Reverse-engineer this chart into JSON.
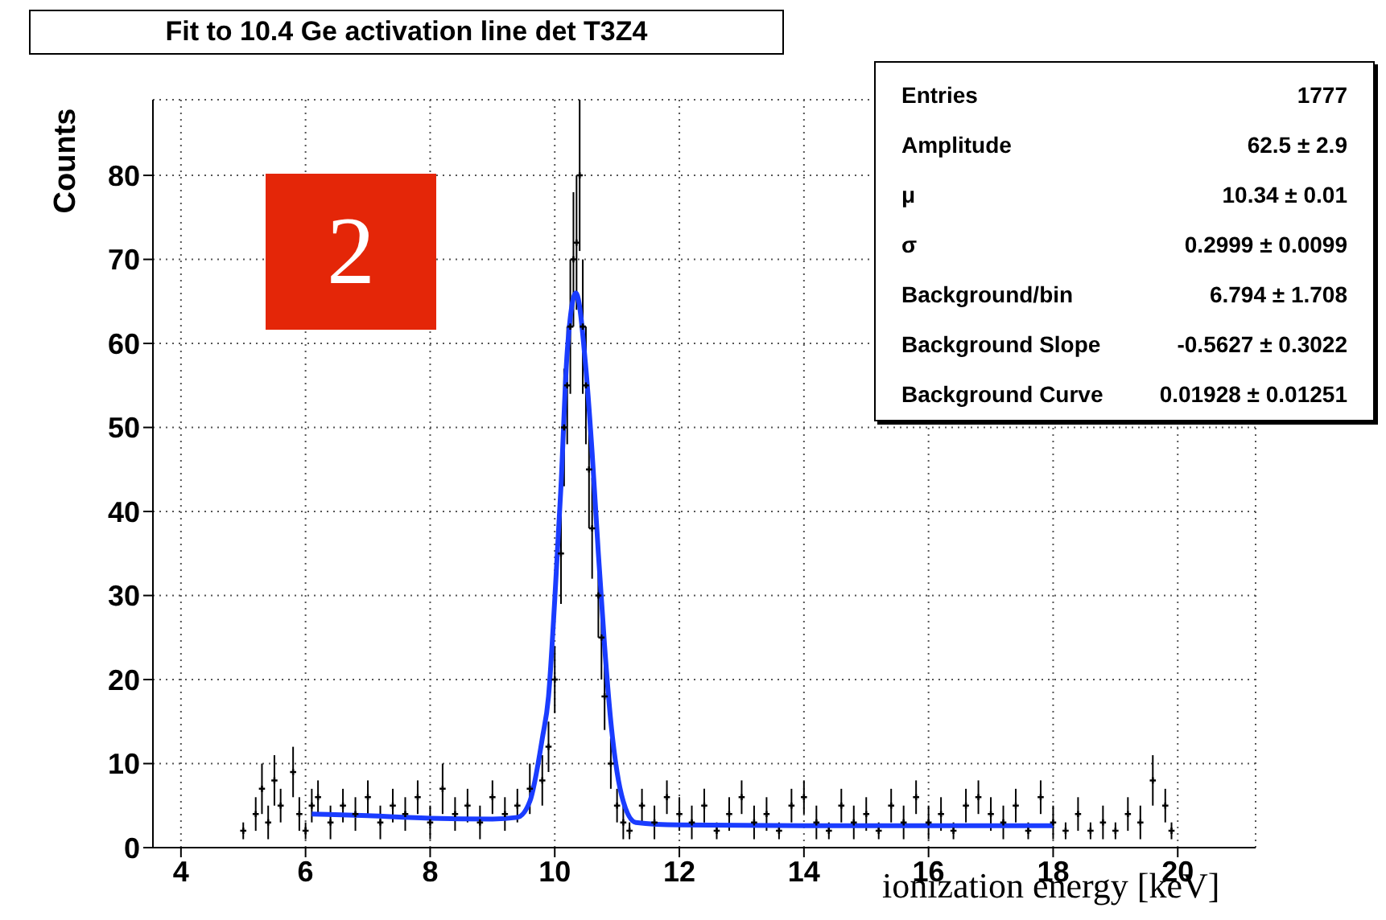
{
  "chart_data": {
    "type": "scatter",
    "title": "Fit to 10.4 Ge activation line det T3Z4",
    "xlabel": "ionization energy [keV]",
    "ylabel": "Counts",
    "xlim": [
      3.55,
      21.25
    ],
    "xticks": [
      4,
      6,
      8,
      10,
      12,
      14,
      16,
      18,
      20
    ],
    "ylim": [
      0,
      89
    ],
    "yticks": [
      0,
      10,
      20,
      30,
      40,
      50,
      60,
      70,
      80
    ],
    "grid": true,
    "legend": false,
    "series": [
      {
        "color": "#000000",
        "marker": "cross",
        "x": [
          5.0,
          5.2,
          5.3,
          5.4,
          5.5,
          5.6,
          5.8,
          5.9,
          6.0,
          6.1,
          6.2,
          6.4,
          6.6,
          6.8,
          7.0,
          7.2,
          7.4,
          7.6,
          7.8,
          8.0,
          8.2,
          8.4,
          8.6,
          8.8,
          9.0,
          9.2,
          9.4,
          9.6,
          9.8,
          9.9,
          10.0,
          10.1,
          10.15,
          10.2,
          10.25,
          10.3,
          10.35,
          10.4,
          10.45,
          10.5,
          10.55,
          10.6,
          10.7,
          10.75,
          10.8,
          10.9,
          11.0,
          11.1,
          11.2,
          11.4,
          11.6,
          11.8,
          12.0,
          12.2,
          12.4,
          12.6,
          12.8,
          13.0,
          13.2,
          13.4,
          13.6,
          13.8,
          14.0,
          14.2,
          14.4,
          14.6,
          14.8,
          15.0,
          15.2,
          15.4,
          15.6,
          15.8,
          16.0,
          16.2,
          16.4,
          16.6,
          16.8,
          17.0,
          17.2,
          17.4,
          17.6,
          17.8,
          18.0,
          18.2,
          18.4,
          18.6,
          18.8,
          19.0,
          19.2,
          19.4,
          19.6,
          19.8,
          19.9
        ],
        "values": [
          2,
          4,
          7,
          3,
          8,
          5,
          9,
          4,
          2,
          5,
          6,
          3,
          5,
          4,
          6,
          3,
          5,
          4,
          6,
          3,
          7,
          4,
          5,
          3,
          6,
          4,
          5,
          7,
          8,
          12,
          20,
          35,
          50,
          55,
          62,
          70,
          72,
          80,
          62,
          55,
          45,
          38,
          30,
          25,
          18,
          10,
          5,
          3,
          2,
          5,
          3,
          6,
          4,
          3,
          5,
          2,
          4,
          6,
          3,
          4,
          2,
          5,
          6,
          3,
          2,
          5,
          3,
          4,
          2,
          5,
          3,
          6,
          3,
          4,
          2,
          5,
          6,
          4,
          3,
          5,
          2,
          6,
          3,
          2,
          4,
          2,
          3,
          2,
          4,
          3,
          8,
          5,
          2
        ],
        "errors": [
          1,
          2,
          3,
          2,
          3,
          2,
          3,
          2,
          1,
          2,
          2,
          2,
          2,
          2,
          2,
          2,
          2,
          2,
          2,
          2,
          3,
          2,
          2,
          2,
          2,
          2,
          2,
          3,
          3,
          3,
          4,
          6,
          7,
          7,
          8,
          8,
          8,
          9,
          8,
          7,
          7,
          6,
          5,
          5,
          4,
          3,
          2,
          2,
          1,
          2,
          2,
          2,
          2,
          2,
          2,
          1,
          2,
          2,
          2,
          2,
          1,
          2,
          2,
          2,
          1,
          2,
          2,
          2,
          1,
          2,
          2,
          2,
          2,
          2,
          1,
          2,
          2,
          2,
          2,
          2,
          1,
          2,
          2,
          1,
          2,
          1,
          2,
          1,
          2,
          2,
          3,
          2,
          1
        ]
      },
      {
        "type": "line",
        "color": "#1a3cff",
        "marker": "none",
        "x": [
          6.1,
          7,
          8,
          9,
          9.4,
          9.6,
          9.8,
          9.9,
          10.0,
          10.1,
          10.2,
          10.34,
          10.5,
          10.6,
          10.7,
          10.8,
          10.9,
          11.0,
          11.1,
          11.3,
          12,
          14,
          16,
          18
        ],
        "values": [
          4.0,
          3.8,
          3.5,
          3.4,
          3.6,
          5.5,
          13,
          18,
          29.5,
          43,
          59,
          66,
          57,
          47,
          35,
          24,
          15,
          9,
          5.5,
          3,
          2.7,
          2.6,
          2.6,
          2.6
        ]
      }
    ],
    "annotations": [
      "2",
      "Entries",
      "1777",
      "Amplitude",
      "62.5 ± 2.9",
      "μ",
      "10.34 ± 0.01",
      "σ",
      "0.2999 ± 0.0099",
      "Background/bin",
      "6.794 ± 1.708",
      "Background Slope",
      "-0.5627 ± 0.3022",
      "Background Curve",
      "0.01928 ± 0.01251"
    ]
  }
}
